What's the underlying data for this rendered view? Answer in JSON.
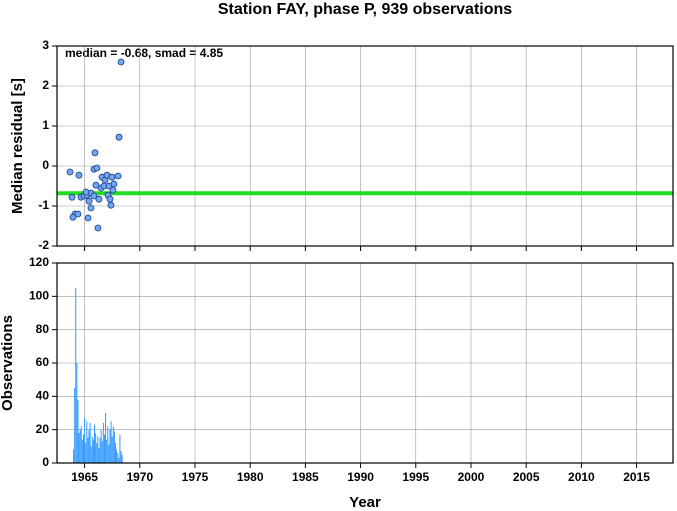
{
  "chart_data": [
    {
      "type": "scatter",
      "title": "Station FAY, phase P, 939 observations",
      "annotation": "median = -0.68, smad = 4.85",
      "ylabel": "Median residual [s]",
      "x": [
        1963.68,
        1964.49,
        1963.86,
        1964.13,
        1963.95,
        1964.4,
        1964.67,
        1964.95,
        1965.22,
        1965.4,
        1965.58,
        1965.31,
        1965.58,
        1965.85,
        1965.85,
        1965.94,
        1966.12,
        1966.21,
        1966.3,
        1966.49,
        1966.58,
        1966.76,
        1966.85,
        1967.03,
        1967.12,
        1967.21,
        1967.3,
        1967.39,
        1967.48,
        1967.57,
        1967.66,
        1968.03,
        1968.12,
        1968.3,
        1966.03,
        1965.13
      ],
      "values": [
        -0.15,
        -0.23,
        -0.78,
        -1.2,
        -1.28,
        -1.2,
        -0.78,
        -0.75,
        -0.73,
        -0.88,
        -0.68,
        -1.3,
        -1.05,
        -0.75,
        -0.08,
        0.33,
        -0.05,
        -1.55,
        -0.83,
        -0.55,
        -0.28,
        -0.5,
        -0.35,
        -0.23,
        -0.73,
        -0.5,
        -0.83,
        -0.98,
        -0.28,
        -0.6,
        -0.45,
        -0.25,
        0.72,
        2.6,
        -0.48,
        -0.65
      ],
      "color": "#6fa8f0",
      "hline": -0.68,
      "hline_color": "#22dd22",
      "xlim": [
        1962.5,
        2018.3
      ],
      "xticks": [
        1965,
        1970,
        1975,
        1980,
        1985,
        1990,
        1995,
        2000,
        2005,
        2010,
        2015
      ],
      "ylim": [
        -2,
        3
      ],
      "yticks": [
        -2,
        -1,
        0,
        1,
        2,
        3
      ],
      "grid": true
    },
    {
      "type": "bar",
      "ylabel": "Observations",
      "xlabel": "Year",
      "x": [
        1964.0,
        1964.1,
        1964.2,
        1964.3,
        1964.4,
        1964.5,
        1964.6,
        1964.7,
        1964.8,
        1964.9,
        1965.0,
        1965.1,
        1965.2,
        1965.3,
        1965.4,
        1965.5,
        1965.6,
        1965.7,
        1965.8,
        1965.9,
        1966.0,
        1966.1,
        1966.2,
        1966.3,
        1966.4,
        1966.5,
        1966.6,
        1966.7,
        1966.8,
        1966.9,
        1967.0,
        1967.1,
        1967.2,
        1967.3,
        1967.4,
        1967.5,
        1967.6,
        1967.7,
        1967.8,
        1967.9,
        1968.0,
        1968.1,
        1968.2,
        1968.3,
        1968.4
      ],
      "values": [
        8,
        45,
        105,
        60,
        38,
        18,
        20,
        22,
        14,
        17,
        27,
        12,
        25,
        15,
        20,
        24,
        10,
        16,
        14,
        23,
        18,
        12,
        16,
        9,
        15,
        20,
        13,
        24,
        17,
        30,
        14,
        22,
        11,
        20,
        25,
        16,
        22,
        19,
        12,
        8,
        6,
        3,
        17,
        7,
        5
      ],
      "color": "#3399ff",
      "xlim": [
        1962.5,
        2018.3
      ],
      "xticks": [
        1965,
        1970,
        1975,
        1980,
        1985,
        1990,
        1995,
        2000,
        2005,
        2010,
        2015
      ],
      "ylim": [
        0,
        120
      ],
      "yticks": [
        0,
        20,
        40,
        60,
        80,
        100,
        120
      ],
      "grid": true
    }
  ]
}
